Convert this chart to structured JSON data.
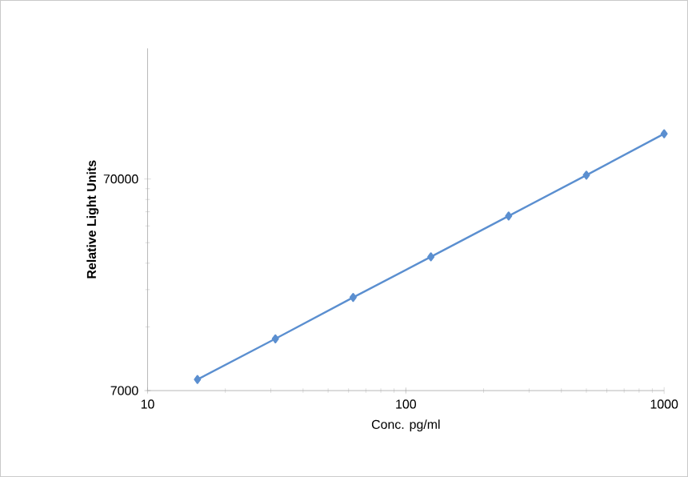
{
  "chart_data": {
    "type": "line",
    "xlabel": "Conc. pg/ml",
    "ylabel": "Relative Light Units",
    "log": "xy",
    "x": [
      15.6,
      31.25,
      62.5,
      125,
      250,
      500,
      1000
    ],
    "series": [
      {
        "color": "#5b8fd0",
        "values": [
          7900,
          12300,
          19300,
          30000,
          46800,
          73000,
          114500
        ]
      }
    ],
    "xlim": [
      10,
      1000
    ],
    "ylim": [
      7000,
      290000
    ],
    "xticks": [
      10,
      100,
      1000
    ],
    "yticks": [
      7000,
      70000
    ],
    "marker": "diamond",
    "line_style": "solid"
  }
}
